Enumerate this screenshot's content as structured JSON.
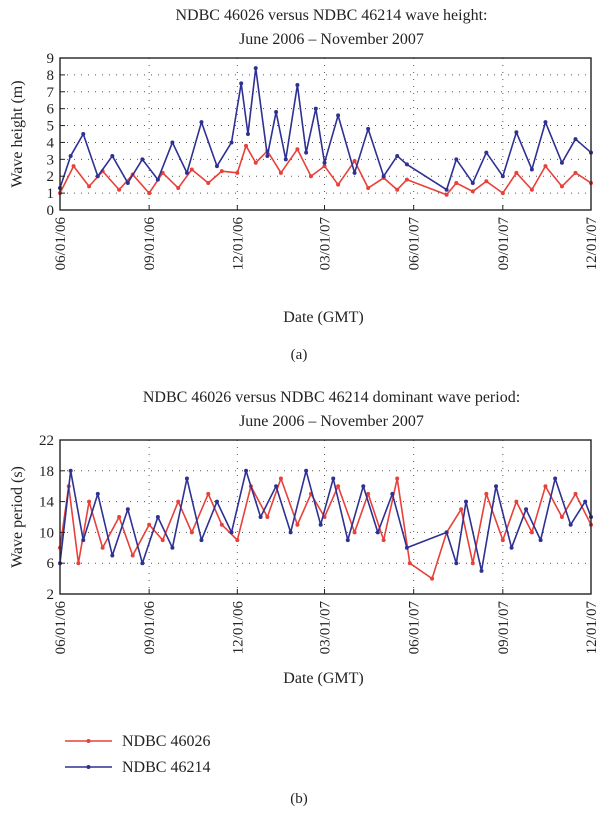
{
  "chart_data": [
    {
      "type": "line",
      "title": [
        "NDBC 46026 versus NDBC 46214 wave height:",
        "June 2006 – November 2007"
      ],
      "xlabel": "Date (GMT)",
      "ylabel": "Wave height (m)",
      "xlim": [
        "2006-06-01",
        "2007-12-01"
      ],
      "ylim": [
        0,
        9
      ],
      "yticks": [
        0,
        1,
        2,
        3,
        4,
        5,
        6,
        7,
        8,
        9
      ],
      "xtick_labels": [
        "06/01/06",
        "09/01/06",
        "12/01/06",
        "03/01/07",
        "06/01/07",
        "09/01/07",
        "12/01/07"
      ],
      "xtick_dates": [
        "2006-06-01",
        "2006-09-01",
        "2006-12-01",
        "2007-03-01",
        "2007-06-01",
        "2007-09-01",
        "2007-12-01"
      ],
      "grid": true,
      "caption": "(a)",
      "series": [
        {
          "name": "NDBC 46026",
          "color": "#e8403a",
          "x": [
            "2006-06-01",
            "2006-06-15",
            "2006-07-01",
            "2006-07-15",
            "2006-08-01",
            "2006-08-15",
            "2006-09-01",
            "2006-09-15",
            "2006-10-01",
            "2006-10-15",
            "2006-11-01",
            "2006-11-15",
            "2006-12-01",
            "2006-12-10",
            "2006-12-20",
            "2007-01-01",
            "2007-01-15",
            "2007-02-01",
            "2007-02-15",
            "2007-03-01",
            "2007-03-15",
            "2007-04-01",
            "2007-04-15",
            "2007-05-01",
            "2007-05-15",
            "2007-05-25",
            "2007-07-05",
            "2007-07-15",
            "2007-08-01",
            "2007-08-15",
            "2007-09-01",
            "2007-09-15",
            "2007-10-01",
            "2007-10-15",
            "2007-11-01",
            "2007-11-15",
            "2007-12-01"
          ],
          "values": [
            1.0,
            2.6,
            1.4,
            2.3,
            1.2,
            2.1,
            1.0,
            2.2,
            1.3,
            2.4,
            1.6,
            2.3,
            2.2,
            3.8,
            2.8,
            3.5,
            2.2,
            3.6,
            2.0,
            2.6,
            1.5,
            2.9,
            1.3,
            1.9,
            1.2,
            1.8,
            0.9,
            1.6,
            1.1,
            1.7,
            1.0,
            2.2,
            1.2,
            2.6,
            1.4,
            2.2,
            1.6
          ]
        },
        {
          "name": "NDBC 46214",
          "color": "#2e3192",
          "x": [
            "2006-06-01",
            "2006-06-12",
            "2006-06-25",
            "2006-07-10",
            "2006-07-25",
            "2006-08-10",
            "2006-08-25",
            "2006-09-10",
            "2006-09-25",
            "2006-10-10",
            "2006-10-25",
            "2006-11-10",
            "2006-11-25",
            "2006-12-05",
            "2006-12-12",
            "2006-12-20",
            "2007-01-01",
            "2007-01-10",
            "2007-01-20",
            "2007-02-01",
            "2007-02-10",
            "2007-02-20",
            "2007-03-01",
            "2007-03-15",
            "2007-04-01",
            "2007-04-15",
            "2007-05-01",
            "2007-05-15",
            "2007-05-25",
            "2007-07-05",
            "2007-07-15",
            "2007-08-01",
            "2007-08-15",
            "2007-09-01",
            "2007-09-15",
            "2007-10-01",
            "2007-10-15",
            "2007-11-01",
            "2007-11-15",
            "2007-12-01"
          ],
          "values": [
            1.3,
            3.2,
            4.5,
            2.0,
            3.2,
            1.6,
            3.0,
            1.8,
            4.0,
            2.2,
            5.2,
            2.6,
            4.0,
            7.5,
            4.5,
            8.4,
            3.2,
            5.8,
            3.0,
            7.4,
            3.4,
            6.0,
            2.8,
            5.6,
            2.2,
            4.8,
            2.0,
            3.2,
            2.7,
            1.2,
            3.0,
            1.6,
            3.4,
            2.0,
            4.6,
            2.4,
            5.2,
            2.8,
            4.2,
            3.4
          ]
        }
      ]
    },
    {
      "type": "line",
      "title": [
        "NDBC 46026 versus NDBC 46214 dominant wave period:",
        "June 2006 – November 2007"
      ],
      "xlabel": "Date (GMT)",
      "ylabel": "Wave period (s)",
      "xlim": [
        "2006-06-01",
        "2007-12-01"
      ],
      "ylim": [
        2,
        22
      ],
      "yticks": [
        2,
        6,
        10,
        14,
        18,
        22
      ],
      "xtick_labels": [
        "06/01/06",
        "09/01/06",
        "12/01/06",
        "03/01/07",
        "06/01/07",
        "09/01/07",
        "12/01/07"
      ],
      "xtick_dates": [
        "2006-06-01",
        "2006-09-01",
        "2006-12-01",
        "2007-03-01",
        "2007-06-01",
        "2007-09-01",
        "2007-12-01"
      ],
      "grid": true,
      "caption": "(b)",
      "series": [
        {
          "name": "NDBC 46026",
          "color": "#e8403a",
          "x": [
            "2006-06-01",
            "2006-06-10",
            "2006-06-20",
            "2006-07-01",
            "2006-07-15",
            "2006-08-01",
            "2006-08-15",
            "2006-09-01",
            "2006-09-15",
            "2006-10-01",
            "2006-10-15",
            "2006-11-01",
            "2006-11-15",
            "2006-12-01",
            "2006-12-15",
            "2007-01-01",
            "2007-01-15",
            "2007-02-01",
            "2007-02-15",
            "2007-03-01",
            "2007-03-15",
            "2007-04-01",
            "2007-04-15",
            "2007-05-01",
            "2007-05-15",
            "2007-05-28",
            "2007-06-20",
            "2007-07-05",
            "2007-07-20",
            "2007-08-01",
            "2007-08-15",
            "2007-09-01",
            "2007-09-15",
            "2007-10-01",
            "2007-10-15",
            "2007-11-01",
            "2007-11-15",
            "2007-12-01"
          ],
          "values": [
            8,
            16,
            6,
            14,
            8,
            12,
            7,
            11,
            9,
            14,
            10,
            15,
            11,
            9,
            16,
            12,
            17,
            11,
            15,
            12,
            16,
            10,
            15,
            9,
            17,
            6,
            4,
            10,
            13,
            6,
            15,
            9,
            14,
            10,
            16,
            12,
            15,
            11
          ]
        },
        {
          "name": "NDBC 46214",
          "color": "#2e3192",
          "x": [
            "2006-06-01",
            "2006-06-12",
            "2006-06-25",
            "2006-07-10",
            "2006-07-25",
            "2006-08-10",
            "2006-08-25",
            "2006-09-10",
            "2006-09-25",
            "2006-10-10",
            "2006-10-25",
            "2006-11-10",
            "2006-11-25",
            "2006-12-10",
            "2006-12-25",
            "2007-01-10",
            "2007-01-25",
            "2007-02-10",
            "2007-02-25",
            "2007-03-10",
            "2007-03-25",
            "2007-04-10",
            "2007-04-25",
            "2007-05-10",
            "2007-05-25",
            "2007-07-05",
            "2007-07-15",
            "2007-07-25",
            "2007-08-10",
            "2007-08-25",
            "2007-09-10",
            "2007-09-25",
            "2007-10-10",
            "2007-10-25",
            "2007-11-10",
            "2007-11-25",
            "2007-12-01"
          ],
          "values": [
            6,
            18,
            9,
            15,
            7,
            13,
            6,
            12,
            8,
            17,
            9,
            14,
            10,
            18,
            12,
            16,
            10,
            18,
            11,
            17,
            9,
            16,
            10,
            15,
            8,
            10,
            6,
            14,
            5,
            16,
            8,
            13,
            9,
            17,
            11,
            14,
            12
          ]
        }
      ]
    }
  ],
  "legend": {
    "placement": "bottom-left",
    "items": [
      {
        "label": "NDBC 46026",
        "color": "#e8403a"
      },
      {
        "label": "NDBC 46214",
        "color": "#2e3192"
      }
    ]
  }
}
